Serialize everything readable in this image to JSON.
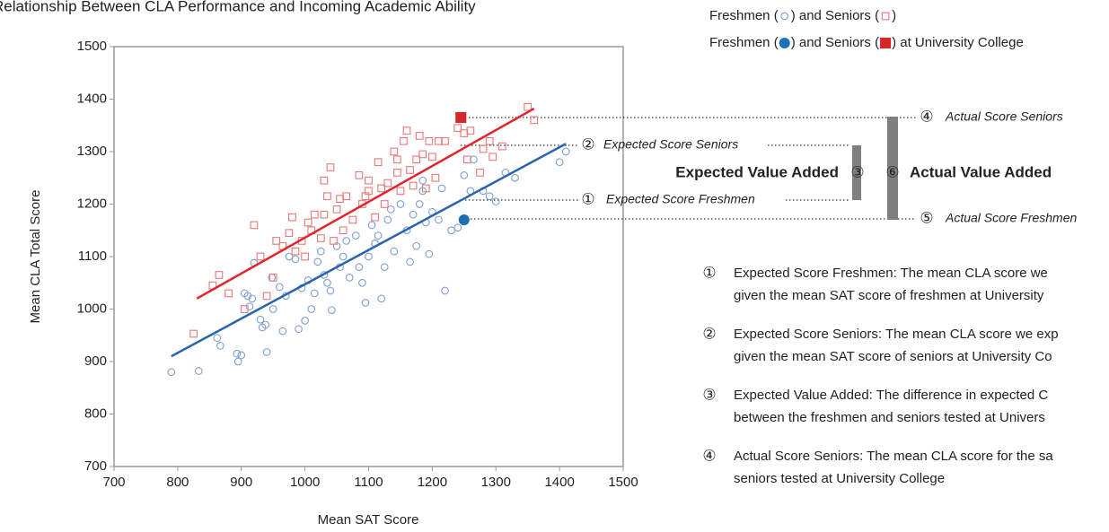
{
  "chart_data": {
    "type": "scatter",
    "title": "Relationship Between CLA Performance and Incoming Academic Ability",
    "x_label": "Mean SAT Score",
    "y_label": "Mean CLA Total Score",
    "xlim": [
      700,
      1500
    ],
    "xticks": [
      700,
      800,
      900,
      1000,
      1100,
      1200,
      1300,
      1400,
      1500
    ],
    "ylim": [
      700,
      1500
    ],
    "yticks": [
      700,
      800,
      900,
      1000,
      1100,
      1200,
      1300,
      1400,
      1500
    ],
    "legend": [
      [
        "Freshmen (",
        ") and Seniors (",
        ")"
      ],
      [
        "Freshmen (",
        ") and Seniors (",
        ") at University College"
      ]
    ],
    "series": [
      {
        "marker": "circle-open",
        "color": "#7f9fcf",
        "x": [
          790,
          833,
          862,
          867,
          893,
          895,
          900,
          905,
          910,
          913,
          917,
          920,
          930,
          933,
          938,
          940,
          948,
          950,
          960,
          965,
          970,
          975,
          985,
          990,
          995,
          1000,
          1005,
          1010,
          1015,
          1020,
          1025,
          1030,
          1035,
          1040,
          1042,
          1050,
          1055,
          1060,
          1065,
          1070,
          1080,
          1085,
          1090,
          1095,
          1100,
          1105,
          1110,
          1115,
          1120,
          1125,
          1130,
          1135,
          1140,
          1150,
          1160,
          1165,
          1170,
          1175,
          1180,
          1185,
          1190,
          1195,
          1200,
          1210,
          1215,
          1220,
          1230,
          1240,
          1250,
          1260,
          1265,
          1280,
          1290,
          1300,
          1315,
          1330,
          1400,
          1410,
          1185
        ],
        "y": [
          880,
          882,
          945,
          930,
          915,
          900,
          912,
          1030,
          1025,
          1005,
          1020,
          1088,
          980,
          965,
          970,
          918,
          1060,
          1000,
          1042,
          958,
          1025,
          1100,
          1095,
          962,
          1040,
          978,
          1055,
          1000,
          1030,
          1090,
          1110,
          1065,
          1050,
          1035,
          998,
          1120,
          1080,
          1100,
          1130,
          1060,
          1140,
          1080,
          1050,
          1012,
          1100,
          1160,
          1125,
          1140,
          1020,
          1080,
          1170,
          1190,
          1110,
          1200,
          1150,
          1090,
          1180,
          1120,
          1200,
          1225,
          1165,
          1105,
          1185,
          1170,
          1230,
          1035,
          1150,
          1155,
          1255,
          1225,
          1285,
          1225,
          1215,
          1205,
          1260,
          1250,
          1280,
          1300,
          1245
        ]
      },
      {
        "marker": "square-open",
        "color": "#e8787a",
        "x": [
          825,
          855,
          865,
          880,
          905,
          920,
          930,
          940,
          950,
          955,
          965,
          975,
          980,
          985,
          995,
          1000,
          1005,
          1010,
          1015,
          1025,
          1030,
          1035,
          1040,
          1045,
          1050,
          1055,
          1060,
          1065,
          1075,
          1085,
          1090,
          1095,
          1100,
          1110,
          1115,
          1120,
          1125,
          1130,
          1140,
          1145,
          1150,
          1155,
          1160,
          1165,
          1170,
          1175,
          1180,
          1185,
          1190,
          1195,
          1200,
          1205,
          1210,
          1220,
          1240,
          1250,
          1255,
          1260,
          1275,
          1280,
          1290,
          1295,
          1310,
          1350,
          1360,
          1030,
          1100,
          1145
        ],
        "y": [
          953,
          1045,
          1065,
          1030,
          1000,
          1160,
          1100,
          1025,
          1060,
          1130,
          1120,
          1145,
          1175,
          1110,
          1130,
          1100,
          1165,
          1150,
          1180,
          1135,
          1180,
          1215,
          1270,
          1130,
          1190,
          1210,
          1150,
          1215,
          1170,
          1255,
          1200,
          1215,
          1225,
          1175,
          1280,
          1230,
          1200,
          1240,
          1300,
          1260,
          1225,
          1320,
          1340,
          1265,
          1235,
          1285,
          1330,
          1295,
          1230,
          1320,
          1290,
          1250,
          1320,
          1320,
          1345,
          1335,
          1285,
          1340,
          1260,
          1305,
          1320,
          1290,
          1310,
          1385,
          1360,
          1245,
          1245,
          1285
        ]
      },
      {
        "marker": "circle",
        "color": "#1f6fb5",
        "x": [
          1250
        ],
        "y": [
          1170
        ]
      },
      {
        "marker": "square",
        "color": "#d7262b",
        "x": [
          1245
        ],
        "y": [
          1365
        ]
      }
    ],
    "trend_lines": [
      {
        "color": "#2a64ad",
        "x": [
          790,
          1410
        ],
        "y": [
          910,
          1315
        ]
      },
      {
        "color": "#e3242b",
        "x": [
          830,
          1360
        ],
        "y": [
          1020,
          1382
        ]
      }
    ],
    "annotations": {
      "actual_seniors": {
        "number": "④",
        "label": "Actual Score Seniors"
      },
      "expected_seniors": {
        "number": "②",
        "label": "Expected Score Seniors"
      },
      "expected_value_added": {
        "number": "③",
        "label": "Expected Value Added"
      },
      "actual_value_added": {
        "number": "⑥",
        "label": "Actual Value Added"
      },
      "expected_freshmen": {
        "number": "①",
        "label": "Expected Score Freshmen"
      },
      "actual_freshmen": {
        "number": "⑤",
        "label": "Actual Score Freshmen"
      }
    },
    "notes": [
      {
        "number": "①",
        "lines": [
          "Expected Score Freshmen: The mean CLA score we",
          "given the mean SAT score of freshmen at University"
        ]
      },
      {
        "number": "②",
        "lines": [
          "Expected Score Seniors: The mean CLA score we exp",
          "given the mean SAT score of seniors at University Co"
        ]
      },
      {
        "number": "③",
        "lines": [
          "Expected Value Added: The difference in expected C",
          "between the freshmen and seniors tested at Univers"
        ]
      },
      {
        "number": "④",
        "lines": [
          "Actual Score Seniors: The mean CLA score for the sa",
          "seniors tested at University College"
        ]
      }
    ]
  }
}
